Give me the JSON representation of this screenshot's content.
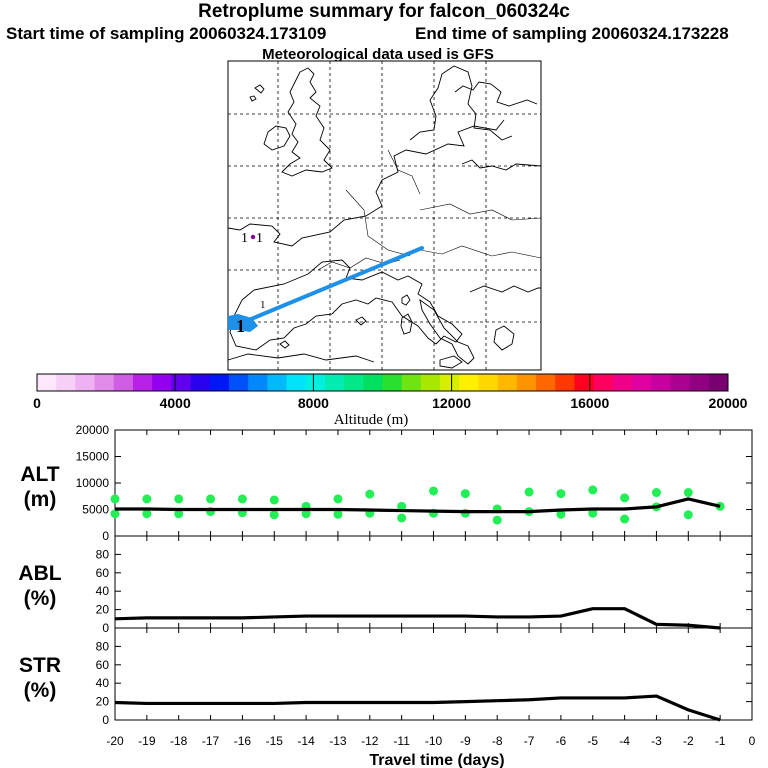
{
  "header": {
    "title": "Retroplume summary for falcon_060324c",
    "start_label": "Start time of sampling 20060324.173109",
    "end_label": "End time of sampling 20060324.173228",
    "met_label": "Meteorological data used is GFS"
  },
  "map": {
    "markers": [
      "1",
      "1",
      "1",
      "1"
    ],
    "track_color": "#1e90e8"
  },
  "colorbar": {
    "label": "Altitude (m)",
    "tick_labels": [
      "0",
      "4000",
      "8000",
      "12000",
      "16000",
      "20000"
    ],
    "colors": [
      "#fde8fb",
      "#f7d0f7",
      "#eeb1f2",
      "#e08ae9",
      "#cf5ee3",
      "#b822e8",
      "#9200ef",
      "#6000ef",
      "#2a00f0",
      "#0018f5",
      "#0050fa",
      "#0088fc",
      "#00bafc",
      "#00e4fa",
      "#00f0e0",
      "#00ecb0",
      "#00e888",
      "#00e060",
      "#28e030",
      "#70e410",
      "#a8e800",
      "#d8ee00",
      "#fff000",
      "#ffd800",
      "#ffb800",
      "#ff9400",
      "#ff6800",
      "#ff3800",
      "#ff0020",
      "#ff0060",
      "#f00088",
      "#e000a0",
      "#c800a0",
      "#ac0090",
      "#900080",
      "#780070"
    ]
  },
  "chart_data": [
    {
      "type": "line",
      "title": "ALT",
      "ylabel": "ALT (m)",
      "ylabel_lines": [
        "ALT",
        "(m)"
      ],
      "ylim": [
        0,
        20000
      ],
      "yticks": [
        "0",
        "5000",
        "10000",
        "15000",
        "20000"
      ],
      "x": [
        -20,
        -19,
        -18,
        -17,
        -16,
        -15,
        -14,
        -13,
        -12,
        -11,
        -10,
        -9,
        -8,
        -7,
        -6,
        -5,
        -4,
        -3,
        -2,
        -1
      ],
      "values": [
        5100,
        5100,
        5000,
        5000,
        5000,
        5000,
        5000,
        5000,
        4900,
        4800,
        4700,
        4600,
        4600,
        4600,
        4900,
        5100,
        5100,
        5500,
        7000,
        5600
      ],
      "scatter_color": "#22ee55",
      "scatter": [
        {
          "x": -20,
          "y": 7000
        },
        {
          "x": -20,
          "y": 4200
        },
        {
          "x": -19,
          "y": 7000
        },
        {
          "x": -19,
          "y": 4200
        },
        {
          "x": -18,
          "y": 7000
        },
        {
          "x": -18,
          "y": 4200
        },
        {
          "x": -17,
          "y": 7000
        },
        {
          "x": -17,
          "y": 4600
        },
        {
          "x": -16,
          "y": 7000
        },
        {
          "x": -16,
          "y": 4400
        },
        {
          "x": -15,
          "y": 6800
        },
        {
          "x": -15,
          "y": 4000
        },
        {
          "x": -14,
          "y": 5600
        },
        {
          "x": -14,
          "y": 4200
        },
        {
          "x": -13,
          "y": 7000
        },
        {
          "x": -13,
          "y": 4100
        },
        {
          "x": -12,
          "y": 7900
        },
        {
          "x": -12,
          "y": 4300
        },
        {
          "x": -11,
          "y": 5600
        },
        {
          "x": -11,
          "y": 3400
        },
        {
          "x": -10,
          "y": 4300
        },
        {
          "x": -10,
          "y": 8500
        },
        {
          "x": -9,
          "y": 4300
        },
        {
          "x": -9,
          "y": 8000
        },
        {
          "x": -8,
          "y": 5100
        },
        {
          "x": -8,
          "y": 3000
        },
        {
          "x": -7,
          "y": 4600
        },
        {
          "x": -7,
          "y": 8300
        },
        {
          "x": -6,
          "y": 8000
        },
        {
          "x": -6,
          "y": 4100
        },
        {
          "x": -5,
          "y": 4300
        },
        {
          "x": -5,
          "y": 8700
        },
        {
          "x": -4,
          "y": 7200
        },
        {
          "x": -4,
          "y": 3200
        },
        {
          "x": -3,
          "y": 8200
        },
        {
          "x": -3,
          "y": 5500
        },
        {
          "x": -2,
          "y": 8200
        },
        {
          "x": -2,
          "y": 4000
        },
        {
          "x": -1,
          "y": 5600
        }
      ]
    },
    {
      "type": "line",
      "title": "ABL",
      "ylabel": "ABL (%)",
      "ylabel_lines": [
        "ABL",
        "(%)"
      ],
      "ylim": [
        0,
        100
      ],
      "yticks": [
        "0",
        "20",
        "40",
        "60",
        "80"
      ],
      "x": [
        -20,
        -19,
        -18,
        -17,
        -16,
        -15,
        -14,
        -13,
        -12,
        -11,
        -10,
        -9,
        -8,
        -7,
        -6,
        -5,
        -4,
        -3,
        -2,
        -1
      ],
      "values": [
        10,
        11,
        11,
        11,
        11,
        12,
        13,
        13,
        13,
        13,
        13,
        13,
        12,
        12,
        13,
        21,
        21,
        4,
        3,
        0
      ]
    },
    {
      "type": "line",
      "title": "STR",
      "ylabel": "STR (%)",
      "ylabel_lines": [
        "STR",
        "(%)"
      ],
      "ylim": [
        0,
        100
      ],
      "yticks": [
        "0",
        "20",
        "40",
        "60",
        "80"
      ],
      "x": [
        -20,
        -19,
        -18,
        -17,
        -16,
        -15,
        -14,
        -13,
        -12,
        -11,
        -10,
        -9,
        -8,
        -7,
        -6,
        -5,
        -4,
        -3,
        -2,
        -1
      ],
      "values": [
        19,
        18,
        18,
        18,
        18,
        18,
        19,
        19,
        19,
        19,
        19,
        20,
        21,
        22,
        24,
        24,
        24,
        26,
        11,
        0
      ],
      "xlabel": "Travel time (days)",
      "xticks": [
        "-20",
        "-19",
        "-18",
        "-17",
        "-16",
        "-15",
        "-14",
        "-13",
        "-12",
        "-11",
        "-10",
        "-9",
        "-8",
        "-7",
        "-6",
        "-5",
        "-4",
        "-3",
        "-2",
        "-1",
        "0"
      ]
    }
  ]
}
